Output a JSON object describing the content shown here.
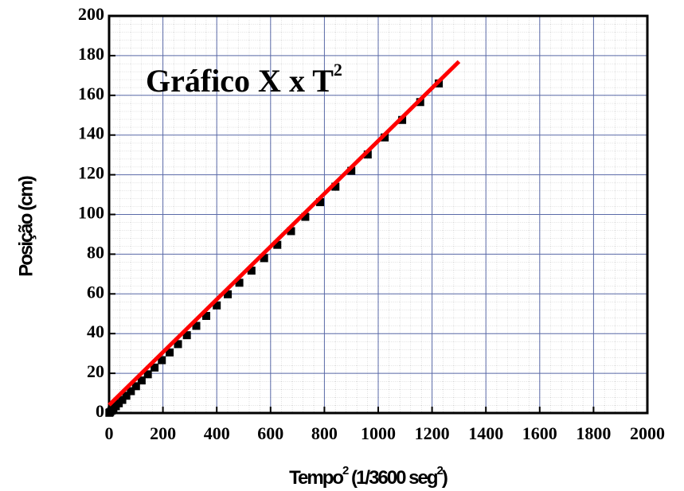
{
  "chart_data": {
    "type": "scatter",
    "title": "Gráfico X x T",
    "title_sup": "2",
    "xlabel": [
      "Tempo",
      "2",
      " (1/3600 seg",
      "2",
      ")"
    ],
    "ylabel": "Posição (cm)",
    "xlim": [
      0,
      2000
    ],
    "xticks": [
      0,
      200,
      400,
      600,
      800,
      1000,
      1200,
      1400,
      1600,
      1800,
      2000
    ],
    "ylim": [
      0,
      200
    ],
    "yticks": [
      0,
      20,
      40,
      60,
      80,
      100,
      120,
      140,
      160,
      180,
      200
    ],
    "grid": true,
    "series": [
      {
        "color": "#000000",
        "marker": "square",
        "x": [
          1,
          4,
          9,
          16,
          25,
          36,
          49,
          64,
          81,
          100,
          121,
          144,
          169,
          196,
          225,
          256,
          289,
          324,
          361,
          400,
          441,
          484,
          529,
          576,
          625,
          676,
          729,
          784,
          841,
          900,
          961,
          1024,
          1089,
          1156,
          1225
        ],
        "values": [
          0.1,
          0.5,
          1.2,
          2.2,
          3.4,
          4.9,
          6.6,
          8.7,
          11,
          13.5,
          16.4,
          19.5,
          22.9,
          26.6,
          30.5,
          34.7,
          39.2,
          43.9,
          48.9,
          54.2,
          59.8,
          65.6,
          71.7,
          78,
          84.7,
          91.6,
          98.8,
          106.2,
          114,
          122,
          130.2,
          138.8,
          147.6,
          156.6,
          166
        ]
      },
      {
        "color": "#ff0000",
        "style": "line",
        "x": [
          0,
          1300
        ],
        "values": [
          4,
          177
        ]
      }
    ]
  }
}
